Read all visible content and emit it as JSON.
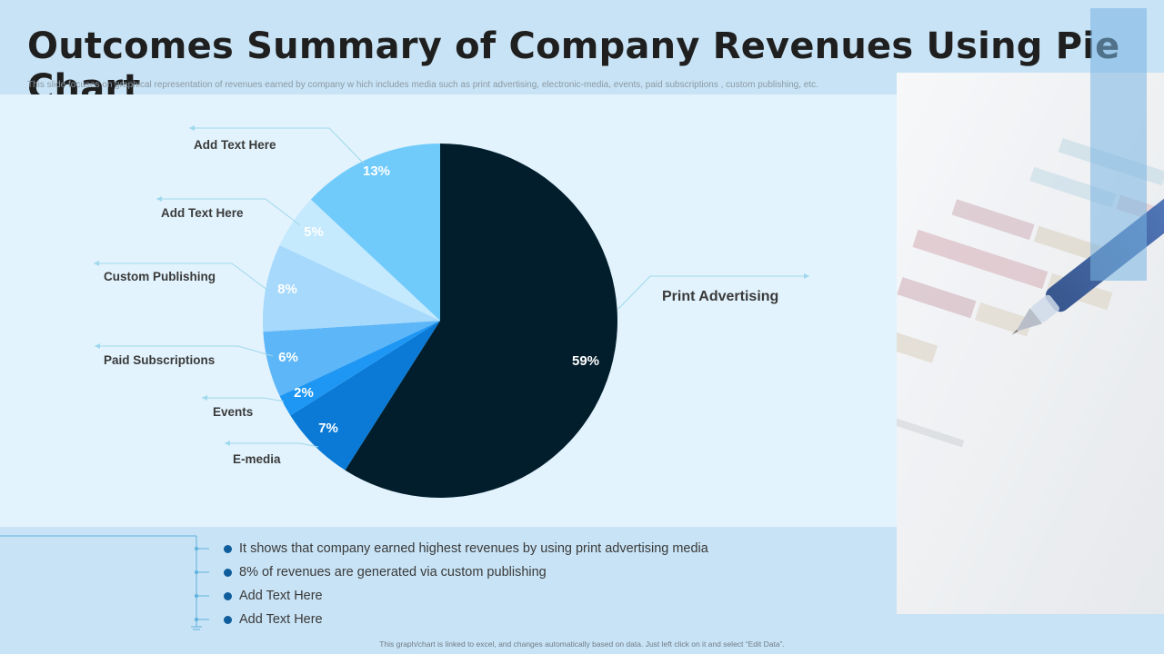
{
  "slide": {
    "title": "Outcomes Summary of Company Revenues Using Pie Chart",
    "subtitle": "This slide focuses on graphical representation of revenues earned by company w hich includes media such as print advertising, electronic-media, events, paid subscriptions , custom publishing, etc.",
    "footer": "This graph/chart is linked to excel, and changes automatically based on data. Just left click on it and select “Edit Data”."
  },
  "notes": [
    "It shows that company earned highest revenues by using print advertising media",
    "8% of revenues are generated via custom publishing",
    "Add Text Here",
    "Add Text Here"
  ],
  "chart_data": {
    "type": "pie",
    "title": "",
    "slices": [
      {
        "label": "Print Advertising",
        "value": 59,
        "display": "59%",
        "color": "#021e2d"
      },
      {
        "label": "E-media",
        "value": 7,
        "display": "7%",
        "color": "#0a7ad6"
      },
      {
        "label": "Events",
        "value": 2,
        "display": "2%",
        "color": "#1e97f4"
      },
      {
        "label": "Paid Subscriptions",
        "value": 6,
        "display": "6%",
        "color": "#5db6f8"
      },
      {
        "label": "Custom Publishing",
        "value": 8,
        "display": "8%",
        "color": "#a6d9fc"
      },
      {
        "label": "Add Text Here",
        "value": 5,
        "display": "5%",
        "color": "#c5e9fd"
      },
      {
        "label": "Add Text Here",
        "value": 13,
        "display": "13%",
        "color": "#70cbfb"
      }
    ]
  },
  "colors": {
    "accent": "#0f5d9c",
    "leader_line": "#9fd8ec",
    "background": "#c8e3f5",
    "panel": "#e2f3fd"
  }
}
